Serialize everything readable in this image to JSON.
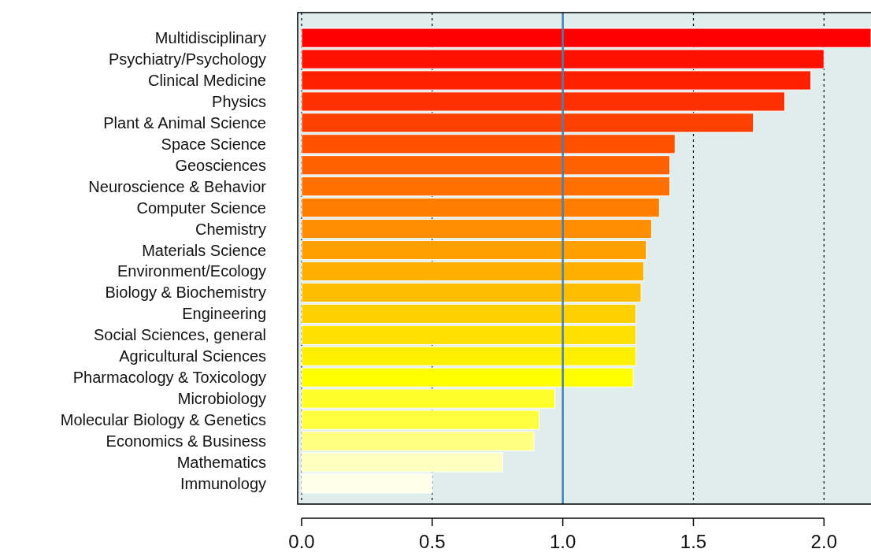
{
  "chart_data": {
    "type": "bar",
    "orientation": "horizontal",
    "categories": [
      "Multidisciplinary",
      "Psychiatry/Psychology",
      "Clinical Medicine",
      "Physics",
      "Plant & Animal Science",
      "Space Science",
      "Geosciences",
      "Neuroscience & Behavior",
      "Computer Science",
      "Chemistry",
      "Materials Science",
      "Environment/Ecology",
      "Biology & Biochemistry",
      "Engineering",
      "Social Sciences, general",
      "Agricultural Sciences",
      "Pharmacology & Toxicology",
      "Microbiology",
      "Molecular Biology & Genetics",
      "Economics & Business",
      "Mathematics",
      "Immunology"
    ],
    "values": [
      2.18,
      2.0,
      1.95,
      1.85,
      1.73,
      1.43,
      1.41,
      1.41,
      1.37,
      1.34,
      1.32,
      1.31,
      1.3,
      1.28,
      1.28,
      1.28,
      1.27,
      0.97,
      0.91,
      0.89,
      0.77,
      0.5
    ],
    "colors": [
      "#ff0000",
      "#ff1000",
      "#ff2000",
      "#ff3000",
      "#ff4000",
      "#ff5000",
      "#ff6000",
      "#ff7000",
      "#ff8000",
      "#ff8f00",
      "#ff9f00",
      "#ffaf00",
      "#ffbf00",
      "#ffcf00",
      "#ffdf00",
      "#ffef00",
      "#ffff00",
      "#ffff2a",
      "#ffff40",
      "#ffff80",
      "#ffffbf",
      "#ffffe8"
    ],
    "xlim": [
      -0.015,
      2.18
    ],
    "xticks": [
      {
        "value": 0,
        "label": "0.0"
      },
      {
        "value": 0.5,
        "label": "0.5"
      },
      {
        "value": 1,
        "label": "1.0"
      },
      {
        "value": 1.5,
        "label": "1.5"
      },
      {
        "value": 2,
        "label": "2.0"
      }
    ],
    "grid": "x",
    "ref_lines": [
      {
        "axis": "x",
        "value": 1,
        "color": "#4682b4",
        "line_style": "solid"
      }
    ]
  }
}
